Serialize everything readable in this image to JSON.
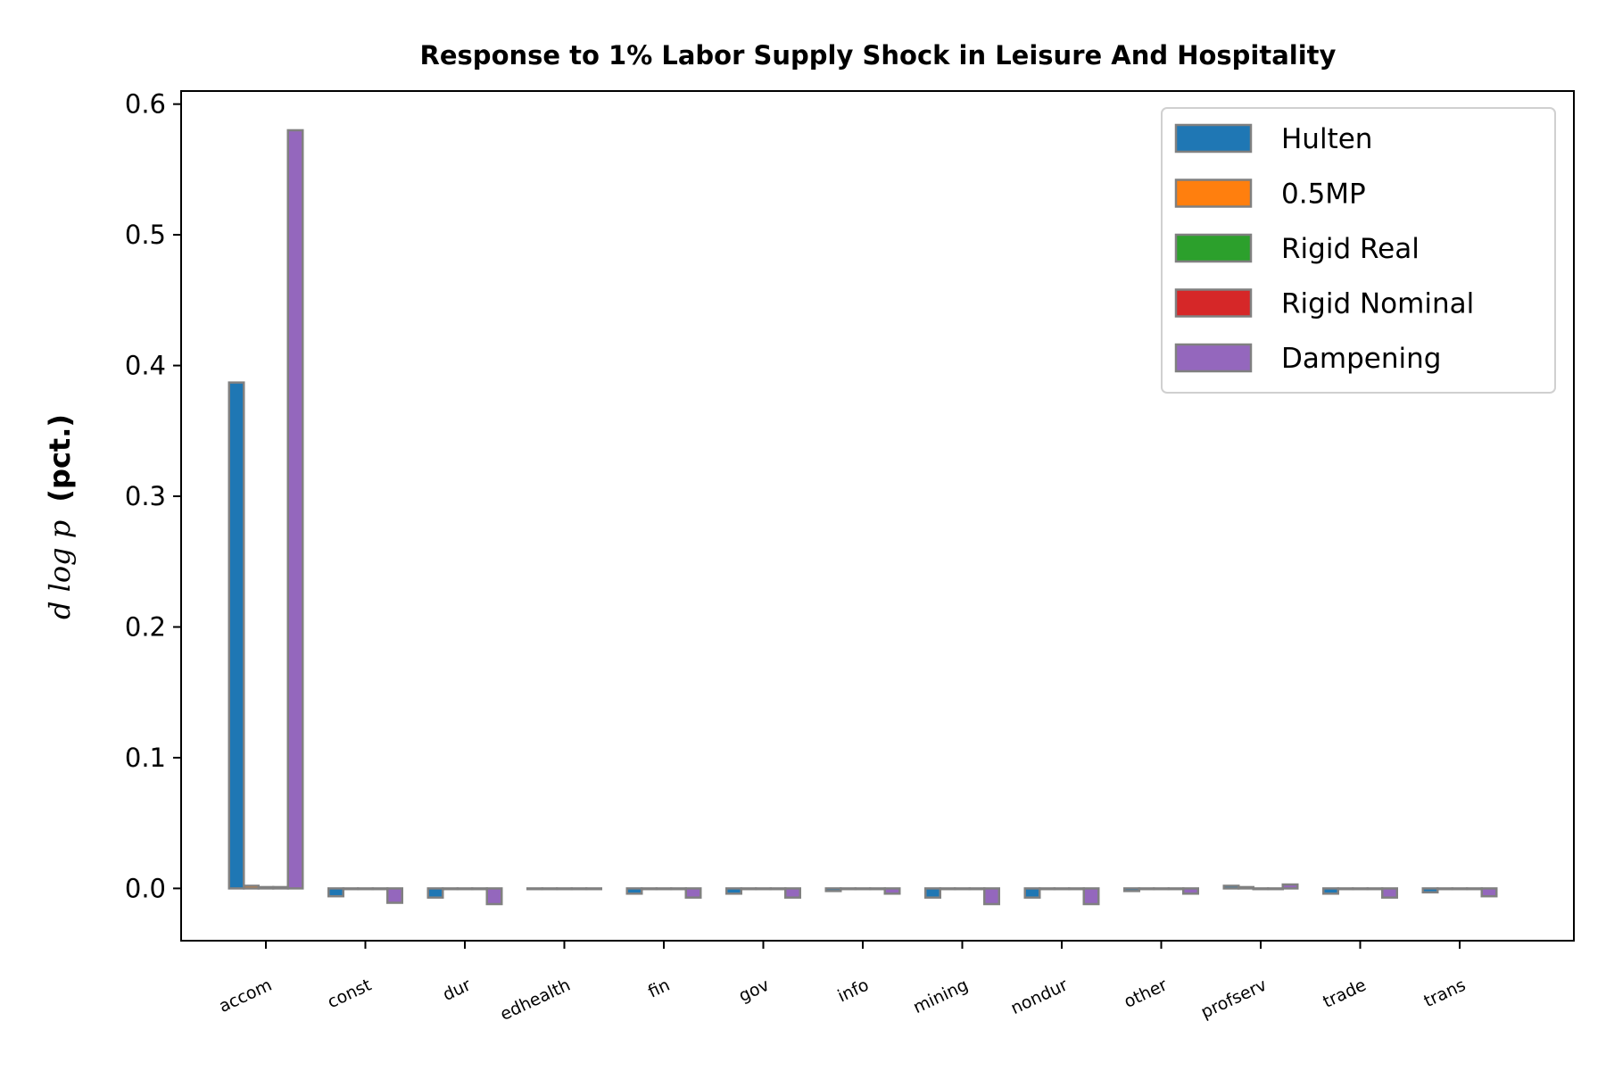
{
  "chart_data": {
    "type": "bar",
    "title": "Response to 1% Labor Supply Shock in Leisure And Hospitality",
    "ylabel_math": "d log p",
    "ylabel_text": "(pct.)",
    "ylim": [
      -0.04,
      0.61
    ],
    "yticks": [
      "0.0",
      "0.1",
      "0.2",
      "0.3",
      "0.4",
      "0.5",
      "0.6"
    ],
    "ytick_values": [
      0.0,
      0.1,
      0.2,
      0.3,
      0.4,
      0.5,
      0.6
    ],
    "categories": [
      "accom",
      "const",
      "dur",
      "edhealth",
      "fin",
      "gov",
      "info",
      "mining",
      "nondur",
      "other",
      "profserv",
      "trade",
      "trans"
    ],
    "legend_position": "upper right",
    "bar_edge_color": "#808080",
    "series": [
      {
        "name": "Hulten",
        "color": "#1f77b4",
        "values": [
          0.387,
          -0.006,
          -0.007,
          0.0,
          -0.004,
          -0.004,
          -0.002,
          -0.007,
          -0.007,
          -0.002,
          0.002,
          -0.004,
          -0.003
        ]
      },
      {
        "name": "0.5MP",
        "color": "#ff7f0e",
        "values": [
          0.002,
          0.0,
          0.0,
          0.0,
          0.0,
          0.0,
          0.0,
          0.0,
          0.0,
          0.0,
          0.001,
          0.0,
          0.0
        ]
      },
      {
        "name": "Rigid Real",
        "color": "#2ca02c",
        "values": [
          0.001,
          0.0,
          0.0,
          0.0,
          0.0,
          0.0,
          0.0,
          0.0,
          0.0,
          0.0,
          0.0,
          0.0,
          0.0
        ]
      },
      {
        "name": "Rigid Nominal",
        "color": "#d62728",
        "values": [
          0.001,
          0.0,
          0.0,
          0.0,
          0.0,
          0.0,
          0.0,
          0.0,
          0.0,
          0.0,
          0.0,
          0.0,
          0.0
        ]
      },
      {
        "name": "Dampening",
        "color": "#9467bd",
        "values": [
          0.58,
          -0.011,
          -0.012,
          0.0,
          -0.007,
          -0.007,
          -0.004,
          -0.012,
          -0.012,
          -0.004,
          0.003,
          -0.007,
          -0.006
        ]
      }
    ]
  }
}
